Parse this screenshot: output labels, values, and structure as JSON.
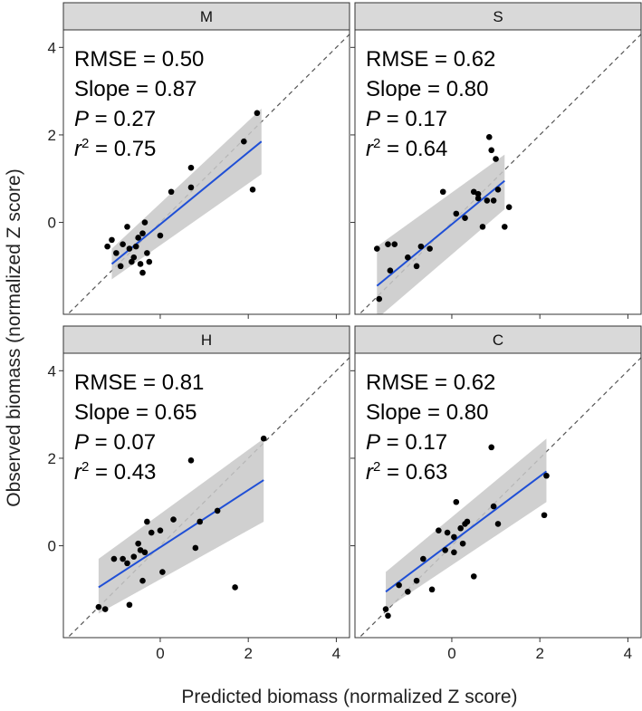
{
  "axes": {
    "xlabel": "Predicted biomass (normalized Z score)",
    "ylabel": "Observed biomass (normalized Z score)"
  },
  "colors": {
    "fit_line": "#1f4fd6",
    "ribbon": "#c8c8c8",
    "points": "#000000",
    "strip_fill": "#d9d9d9",
    "border": "#333333",
    "identity_line": "#555555"
  },
  "chart_data": [
    {
      "type": "scatter",
      "panel": "M",
      "xlim": [
        -2.2,
        4.3
      ],
      "ylim": [
        -2.1,
        4.4
      ],
      "x_ticks": [
        0,
        2,
        4
      ],
      "y_ticks": [
        0,
        2,
        4
      ],
      "x_tick_labels": [
        "",
        "",
        ""
      ],
      "y_tick_labels": [
        "4",
        "2",
        "0"
      ],
      "stats": {
        "rmse": "RMSE = 0.50",
        "slope": "Slope = 0.87",
        "p_label": "P",
        "p_value": " = 0.27",
        "r2_label": "r",
        "r2_sup": "2",
        "r2_value": " = 0.75"
      },
      "fit": {
        "x": [
          -1.1,
          2.3
        ],
        "y": [
          -0.95,
          1.85
        ],
        "upper": [
          -0.6,
          2.6
        ],
        "lower": [
          -1.3,
          1.1
        ]
      },
      "points": [
        [
          -1.2,
          -0.55
        ],
        [
          -1.1,
          -0.4
        ],
        [
          -1.0,
          -0.7
        ],
        [
          -0.9,
          -1.0
        ],
        [
          -0.85,
          -0.5
        ],
        [
          -0.75,
          -0.1
        ],
        [
          -0.7,
          -0.6
        ],
        [
          -0.65,
          -0.9
        ],
        [
          -0.6,
          -0.8
        ],
        [
          -0.55,
          -0.55
        ],
        [
          -0.5,
          -0.35
        ],
        [
          -0.45,
          -0.95
        ],
        [
          -0.4,
          -1.15
        ],
        [
          -0.4,
          -0.25
        ],
        [
          -0.35,
          0.0
        ],
        [
          -0.3,
          -0.7
        ],
        [
          -0.25,
          -0.9
        ],
        [
          0.0,
          -0.3
        ],
        [
          0.25,
          0.7
        ],
        [
          0.7,
          0.8
        ],
        [
          0.7,
          1.25
        ],
        [
          1.9,
          1.85
        ],
        [
          2.1,
          0.75
        ],
        [
          2.2,
          2.5
        ]
      ]
    },
    {
      "type": "scatter",
      "panel": "S",
      "xlim": [
        -2.2,
        4.3
      ],
      "ylim": [
        -2.1,
        4.4
      ],
      "x_ticks": [
        0,
        2,
        4
      ],
      "y_ticks": [
        0,
        2,
        4
      ],
      "x_tick_labels": [
        "",
        "",
        ""
      ],
      "y_tick_labels": [
        "",
        "",
        ""
      ],
      "stats": {
        "rmse": "RMSE = 0.62",
        "slope": "Slope = 0.80",
        "p_label": "P",
        "p_value": " = 0.17",
        "r2_label": "r",
        "r2_sup": "2",
        "r2_value": " = 0.64"
      },
      "fit": {
        "x": [
          -1.7,
          1.2
        ],
        "y": [
          -1.45,
          0.95
        ],
        "upper": [
          -0.55,
          1.55
        ],
        "lower": [
          -2.2,
          0.3
        ]
      },
      "points": [
        [
          -1.7,
          -0.6
        ],
        [
          -1.65,
          -1.75
        ],
        [
          -1.45,
          -0.5
        ],
        [
          -1.4,
          -1.1
        ],
        [
          -1.3,
          -0.5
        ],
        [
          -1.0,
          -0.8
        ],
        [
          -0.8,
          -1.0
        ],
        [
          -0.7,
          -0.55
        ],
        [
          -0.5,
          -0.6
        ],
        [
          -0.2,
          0.7
        ],
        [
          0.1,
          0.2
        ],
        [
          0.3,
          0.1
        ],
        [
          0.5,
          0.7
        ],
        [
          0.6,
          0.55
        ],
        [
          0.6,
          0.65
        ],
        [
          0.7,
          -0.1
        ],
        [
          0.8,
          0.5
        ],
        [
          0.85,
          1.95
        ],
        [
          0.9,
          1.65
        ],
        [
          0.95,
          0.5
        ],
        [
          1.0,
          1.45
        ],
        [
          1.05,
          0.75
        ],
        [
          1.2,
          -0.1
        ],
        [
          1.3,
          0.35
        ]
      ]
    },
    {
      "type": "scatter",
      "panel": "H",
      "xlim": [
        -2.2,
        4.3
      ],
      "ylim": [
        -2.1,
        4.4
      ],
      "x_ticks": [
        0,
        2,
        4
      ],
      "y_ticks": [
        0,
        2,
        4
      ],
      "x_tick_labels": [
        "0",
        "2",
        "4"
      ],
      "y_tick_labels": [
        "4",
        "2",
        "0"
      ],
      "stats": {
        "rmse": "RMSE = 0.81",
        "slope": "Slope = 0.65",
        "p_label": "P",
        "p_value": " = 0.07",
        "r2_label": "r",
        "r2_sup": "2",
        "r2_value": " = 0.43"
      },
      "fit": {
        "x": [
          -1.4,
          2.35
        ],
        "y": [
          -0.95,
          1.5
        ],
        "upper": [
          -0.3,
          2.45
        ],
        "lower": [
          -1.55,
          0.55
        ]
      },
      "points": [
        [
          -1.4,
          -1.4
        ],
        [
          -1.25,
          -1.45
        ],
        [
          -1.05,
          -0.3
        ],
        [
          -0.85,
          -0.3
        ],
        [
          -0.75,
          -0.4
        ],
        [
          -0.7,
          -1.35
        ],
        [
          -0.6,
          -0.25
        ],
        [
          -0.5,
          0.05
        ],
        [
          -0.45,
          -0.1
        ],
        [
          -0.4,
          -0.8
        ],
        [
          -0.35,
          -0.15
        ],
        [
          -0.3,
          0.55
        ],
        [
          -0.2,
          0.3
        ],
        [
          0.0,
          0.35
        ],
        [
          0.05,
          -0.6
        ],
        [
          0.3,
          0.6
        ],
        [
          0.7,
          1.95
        ],
        [
          0.8,
          -0.05
        ],
        [
          0.9,
          0.55
        ],
        [
          1.3,
          0.8
        ],
        [
          1.7,
          -0.95
        ],
        [
          2.35,
          2.45
        ]
      ]
    },
    {
      "type": "scatter",
      "panel": "C",
      "xlim": [
        -2.2,
        4.3
      ],
      "ylim": [
        -2.1,
        4.4
      ],
      "x_ticks": [
        0,
        2,
        4
      ],
      "y_ticks": [
        0,
        2,
        4
      ],
      "x_tick_labels": [
        "0",
        "2",
        "4"
      ],
      "y_tick_labels": [
        "",
        "",
        ""
      ],
      "stats": {
        "rmse": "RMSE = 0.62",
        "slope": "Slope = 0.80",
        "p_label": "P",
        "p_value": " = 0.17",
        "r2_label": "r",
        "r2_sup": "2",
        "r2_value": " = 0.63"
      },
      "fit": {
        "x": [
          -1.5,
          2.15
        ],
        "y": [
          -1.05,
          1.7
        ],
        "upper": [
          -0.6,
          2.45
        ],
        "lower": [
          -1.45,
          1.0
        ]
      },
      "points": [
        [
          -1.5,
          -1.45
        ],
        [
          -1.45,
          -1.6
        ],
        [
          -1.2,
          -0.9
        ],
        [
          -1.0,
          -1.05
        ],
        [
          -0.8,
          -0.8
        ],
        [
          -0.65,
          -0.3
        ],
        [
          -0.45,
          -1.0
        ],
        [
          -0.3,
          0.35
        ],
        [
          -0.15,
          -0.1
        ],
        [
          -0.1,
          0.3
        ],
        [
          0.05,
          0.2
        ],
        [
          0.05,
          -0.15
        ],
        [
          0.1,
          1.0
        ],
        [
          0.2,
          0.4
        ],
        [
          0.25,
          0.05
        ],
        [
          0.3,
          0.5
        ],
        [
          0.35,
          0.55
        ],
        [
          0.5,
          -0.7
        ],
        [
          0.9,
          2.25
        ],
        [
          0.95,
          0.9
        ],
        [
          1.05,
          0.5
        ],
        [
          2.1,
          0.7
        ],
        [
          2.15,
          1.6
        ]
      ]
    }
  ]
}
